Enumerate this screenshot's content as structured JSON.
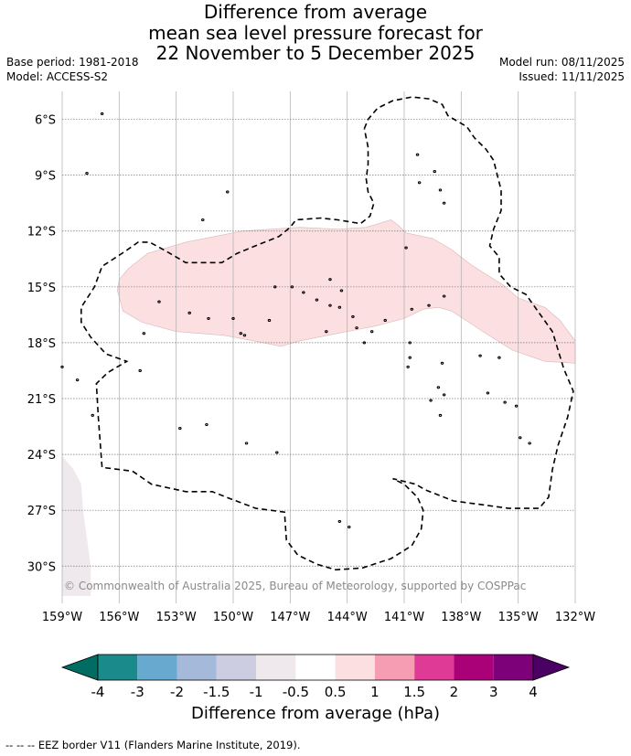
{
  "title": {
    "line1": "Difference from average",
    "line2": "mean sea level pressure forecast for",
    "line3": "22 November to 5 December 2025"
  },
  "meta": {
    "base_period": "Base period: 1981-2018",
    "model": "Model: ACCESS-S2",
    "model_run": "Model run: 08/11/2025",
    "issued": "Issued: 11/11/2025"
  },
  "map": {
    "lat_range": [
      -32,
      -4.5
    ],
    "lon_range": [
      -159,
      -132
    ],
    "lat_ticks": [
      {
        "value": -6,
        "label": "6°S"
      },
      {
        "value": -9,
        "label": "9°S"
      },
      {
        "value": -12,
        "label": "12°S"
      },
      {
        "value": -15,
        "label": "15°S"
      },
      {
        "value": -18,
        "label": "18°S"
      },
      {
        "value": -21,
        "label": "21°S"
      },
      {
        "value": -24,
        "label": "24°S"
      },
      {
        "value": -27,
        "label": "27°S"
      },
      {
        "value": -30,
        "label": "30°S"
      }
    ],
    "lon_ticks": [
      {
        "value": -159,
        "label": "159°W"
      },
      {
        "value": -156,
        "label": "156°W"
      },
      {
        "value": -153,
        "label": "153°W"
      },
      {
        "value": -150,
        "label": "150°W"
      },
      {
        "value": -147,
        "label": "147°W"
      },
      {
        "value": -144,
        "label": "144°W"
      },
      {
        "value": -141,
        "label": "141°W"
      },
      {
        "value": -138,
        "label": "138°W"
      },
      {
        "value": -135,
        "label": "135°W"
      },
      {
        "value": -132,
        "label": "132°W"
      }
    ],
    "anomaly_region": {
      "category": "0.5 to 1 hPa",
      "color": "#fcdfe0",
      "outline": [
        [
          -155.5,
          -14.0
        ],
        [
          -154.5,
          -13.2
        ],
        [
          -152.5,
          -12.6
        ],
        [
          -149.5,
          -12.0
        ],
        [
          -146.5,
          -11.8
        ],
        [
          -144.5,
          -11.9
        ],
        [
          -143.0,
          -11.8
        ],
        [
          -141.7,
          -11.4
        ],
        [
          -141.3,
          -11.7
        ],
        [
          -140.9,
          -12.1
        ],
        [
          -139.5,
          -12.4
        ],
        [
          -138.5,
          -13.0
        ],
        [
          -137.5,
          -13.8
        ],
        [
          -135.8,
          -14.9
        ],
        [
          -135.0,
          -15.6
        ],
        [
          -133.6,
          -16.1
        ],
        [
          -132.8,
          -16.8
        ],
        [
          -132.0,
          -17.9
        ],
        [
          -132.0,
          -19.1
        ],
        [
          -133.6,
          -19.0
        ],
        [
          -135.3,
          -18.4
        ],
        [
          -136.7,
          -17.5
        ],
        [
          -137.9,
          -16.7
        ],
        [
          -138.5,
          -16.3
        ],
        [
          -139.2,
          -16.1
        ],
        [
          -140.0,
          -16.2
        ],
        [
          -141.0,
          -16.7
        ],
        [
          -142.5,
          -17.1
        ],
        [
          -144.5,
          -17.5
        ],
        [
          -146.5,
          -17.9
        ],
        [
          -147.5,
          -18.2
        ],
        [
          -148.4,
          -18.0
        ],
        [
          -150.5,
          -17.6
        ],
        [
          -153.0,
          -17.4
        ],
        [
          -154.8,
          -16.9
        ],
        [
          -155.8,
          -16.3
        ],
        [
          -156.1,
          -15.2
        ],
        [
          -156.0,
          -14.6
        ],
        [
          -155.5,
          -14.0
        ]
      ]
    },
    "corner_region": {
      "category": "-1 to -0.5 hPa",
      "color": "#efe9ee",
      "outline": [
        [
          -159,
          -24.1
        ],
        [
          -158.4,
          -24.8
        ],
        [
          -158.0,
          -25.6
        ],
        [
          -157.9,
          -27.0
        ],
        [
          -157.7,
          -28.5
        ],
        [
          -157.5,
          -30.0
        ],
        [
          -157.5,
          -31.6
        ],
        [
          -159,
          -31.6
        ]
      ]
    },
    "eez_border": [
      [
        -143.1,
        -6.5
      ],
      [
        -142.9,
        -6.0
      ],
      [
        -142.4,
        -5.4
      ],
      [
        -141.6,
        -5.0
      ],
      [
        -140.6,
        -4.8
      ],
      [
        -139.7,
        -4.9
      ],
      [
        -139.0,
        -5.2
      ],
      [
        -138.7,
        -5.8
      ],
      [
        -137.7,
        -6.4
      ],
      [
        -137.3,
        -7.0
      ],
      [
        -136.7,
        -7.6
      ],
      [
        -136.3,
        -8.2
      ],
      [
        -136.1,
        -9.0
      ],
      [
        -135.9,
        -9.8
      ],
      [
        -135.9,
        -10.9
      ],
      [
        -136.3,
        -11.9
      ],
      [
        -136.5,
        -12.8
      ],
      [
        -136.0,
        -13.4
      ],
      [
        -136.0,
        -14.3
      ],
      [
        -135.4,
        -15.0
      ],
      [
        -134.6,
        -15.4
      ],
      [
        -133.9,
        -16.4
      ],
      [
        -133.2,
        -17.4
      ],
      [
        -132.9,
        -18.4
      ],
      [
        -132.6,
        -19.4
      ],
      [
        -132.1,
        -20.6
      ],
      [
        -132.4,
        -22.0
      ],
      [
        -132.9,
        -23.5
      ],
      [
        -133.2,
        -24.8
      ],
      [
        -133.4,
        -26.3
      ],
      [
        -133.9,
        -26.9
      ],
      [
        -135.5,
        -26.9
      ],
      [
        -136.9,
        -26.7
      ],
      [
        -138.4,
        -26.5
      ],
      [
        -139.9,
        -25.9
      ],
      [
        -140.4,
        -25.6
      ],
      [
        -141.6,
        -25.3
      ],
      [
        -141.0,
        -25.6
      ],
      [
        -140.3,
        -26.3
      ],
      [
        -140.0,
        -27.0
      ],
      [
        -140.1,
        -28.0
      ],
      [
        -140.6,
        -28.9
      ],
      [
        -141.7,
        -29.6
      ],
      [
        -143.2,
        -30.1
      ],
      [
        -144.6,
        -30.2
      ],
      [
        -145.6,
        -29.9
      ],
      [
        -146.6,
        -29.4
      ],
      [
        -147.2,
        -28.6
      ],
      [
        -147.3,
        -27.1
      ],
      [
        -148.8,
        -26.9
      ],
      [
        -150.1,
        -26.4
      ],
      [
        -151.1,
        -26.0
      ],
      [
        -152.5,
        -26.0
      ],
      [
        -154.3,
        -25.6
      ],
      [
        -155.3,
        -24.9
      ],
      [
        -156.9,
        -24.7
      ],
      [
        -157.1,
        -22.0
      ],
      [
        -157.2,
        -20.2
      ],
      [
        -156.6,
        -19.6
      ],
      [
        -155.6,
        -19.0
      ],
      [
        -156.7,
        -18.6
      ],
      [
        -157.5,
        -17.7
      ],
      [
        -158.0,
        -16.9
      ],
      [
        -158.0,
        -16.1
      ],
      [
        -157.3,
        -15.0
      ],
      [
        -156.9,
        -13.9
      ],
      [
        -155.7,
        -13.1
      ],
      [
        -155.0,
        -12.6
      ],
      [
        -154.4,
        -12.6
      ],
      [
        -153.5,
        -13.1
      ],
      [
        -152.5,
        -13.7
      ],
      [
        -150.6,
        -13.7
      ],
      [
        -149.8,
        -13.2
      ],
      [
        -148.6,
        -12.7
      ],
      [
        -147.6,
        -12.3
      ],
      [
        -147.0,
        -11.8
      ],
      [
        -146.7,
        -11.4
      ],
      [
        -145.4,
        -11.3
      ],
      [
        -144.5,
        -11.4
      ],
      [
        -143.3,
        -11.6
      ],
      [
        -142.8,
        -11.2
      ],
      [
        -142.6,
        -10.5
      ],
      [
        -142.9,
        -9.9
      ],
      [
        -143.0,
        -9.2
      ],
      [
        -142.9,
        -8.4
      ],
      [
        -142.9,
        -7.5
      ],
      [
        -143.1,
        -6.5
      ]
    ],
    "islands": [
      [
        -156.9,
        -5.7
      ],
      [
        -157.7,
        -8.9
      ],
      [
        -150.3,
        -9.9
      ],
      [
        -151.6,
        -11.4
      ],
      [
        -140.3,
        -7.9
      ],
      [
        -139.4,
        -8.8
      ],
      [
        -140.2,
        -9.4
      ],
      [
        -139.1,
        -9.8
      ],
      [
        -138.9,
        -10.5
      ],
      [
        -140.9,
        -12.9
      ],
      [
        -147.8,
        -15.0
      ],
      [
        -146.9,
        -15.0
      ],
      [
        -146.3,
        -15.3
      ],
      [
        -145.6,
        -15.7
      ],
      [
        -144.9,
        -14.6
      ],
      [
        -144.3,
        -15.2
      ],
      [
        -144.9,
        -16.0
      ],
      [
        -144.4,
        -16.1
      ],
      [
        -143.7,
        -16.6
      ],
      [
        -143.5,
        -17.2
      ],
      [
        -142.7,
        -17.4
      ],
      [
        -142.0,
        -16.8
      ],
      [
        -140.6,
        -16.2
      ],
      [
        -139.7,
        -16.0
      ],
      [
        -138.9,
        -15.5
      ],
      [
        -148.1,
        -16.8
      ],
      [
        -149.4,
        -17.6
      ],
      [
        -150.0,
        -16.7
      ],
      [
        -151.3,
        -16.7
      ],
      [
        -152.3,
        -16.4
      ],
      [
        -153.9,
        -15.8
      ],
      [
        -154.7,
        -17.5
      ],
      [
        -149.6,
        -17.5
      ],
      [
        -145.1,
        -17.4
      ],
      [
        -143.1,
        -18.0
      ],
      [
        -140.7,
        -18.0
      ],
      [
        -140.7,
        -18.8
      ],
      [
        -140.8,
        -19.3
      ],
      [
        -139.0,
        -19.1
      ],
      [
        -137.0,
        -18.7
      ],
      [
        -136.0,
        -18.8
      ],
      [
        -139.2,
        -20.4
      ],
      [
        -139.6,
        -21.1
      ],
      [
        -138.9,
        -20.8
      ],
      [
        -136.6,
        -20.7
      ],
      [
        -135.7,
        -21.2
      ],
      [
        -135.1,
        -21.4
      ],
      [
        -139.1,
        -21.9
      ],
      [
        -134.9,
        -23.1
      ],
      [
        -134.4,
        -23.4
      ],
      [
        -157.4,
        -21.9
      ],
      [
        -154.9,
        -19.5
      ],
      [
        -158.2,
        -20.0
      ],
      [
        -159.0,
        -19.3
      ],
      [
        -152.8,
        -22.6
      ],
      [
        -151.4,
        -22.4
      ],
      [
        -149.3,
        -23.4
      ],
      [
        -147.7,
        -23.9
      ],
      [
        -144.4,
        -27.6
      ],
      [
        -143.9,
        -27.9
      ]
    ]
  },
  "colorbar": {
    "title": "Difference from average (hPa)",
    "ticks": [
      "-4",
      "-3",
      "-2",
      "-1.5",
      "-1",
      "-0.5",
      "0.5",
      "1",
      "1.5",
      "2",
      "3",
      "4"
    ],
    "colors": [
      "#1a8a8a",
      "#68a9d0",
      "#a5b9da",
      "#cdcde1",
      "#efe9ee",
      "#ffffff",
      "#fcdfe0",
      "#f79db3",
      "#df3a95",
      "#ab0178",
      "#7d0178"
    ],
    "under_color": "#006c62",
    "over_color": "#4b0063"
  },
  "footer": {
    "copyright": "© Commonwealth of Australia 2025, Bureau of Meteorology, supported by COSPPac",
    "eez_legend": "--  --  -- EEZ border V11 (Flanders Marine Institute, 2019)."
  }
}
